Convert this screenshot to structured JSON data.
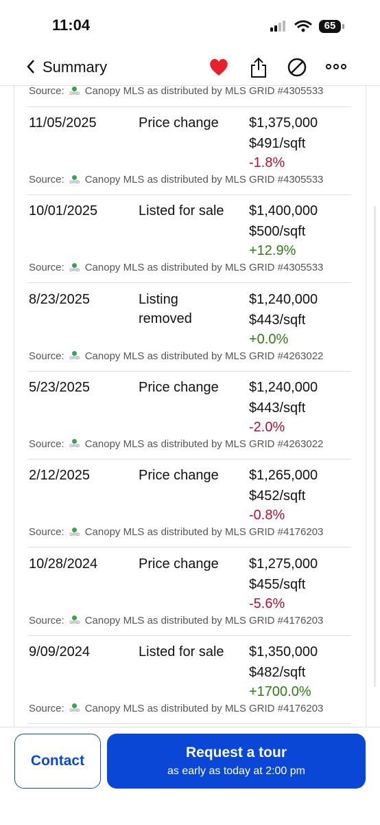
{
  "status_bar": {
    "time": "11:04",
    "battery": "65"
  },
  "nav": {
    "back_label": "Summary"
  },
  "history": {
    "top_source": {
      "label": "Source:",
      "logo": "GRID",
      "text": "Canopy MLS as distributed by MLS GRID #4305533"
    },
    "rows": [
      {
        "date": "11/05/2025",
        "event": "Price change",
        "price": "$1,375,000",
        "per_sqft": "$491/sqft",
        "change": "-1.8%",
        "change_color": "#b0102a",
        "source": {
          "label": "Source:",
          "logo": "GRID",
          "text": "Canopy MLS as distributed by MLS GRID #4305533"
        }
      },
      {
        "date": "10/01/2025",
        "event": "Listed for sale",
        "price": "$1,400,000",
        "per_sqft": "$500/sqft",
        "change": "+12.9%",
        "change_color": "#2e7d12",
        "source": {
          "label": "Source:",
          "logo": "GRID",
          "text": "Canopy MLS as distributed by MLS GRID #4305533"
        }
      },
      {
        "date": "8/23/2025",
        "event": "Listing removed",
        "price": "$1,240,000",
        "per_sqft": "$443/sqft",
        "change": "+0.0%",
        "change_color": "#2e7d12",
        "source": {
          "label": "Source:",
          "logo": "GRID",
          "text": "Canopy MLS as distributed by MLS GRID #4263022"
        }
      },
      {
        "date": "5/23/2025",
        "event": "Price change",
        "price": "$1,240,000",
        "per_sqft": "$443/sqft",
        "change": "-2.0%",
        "change_color": "#b0102a",
        "source": {
          "label": "Source:",
          "logo": "GRID",
          "text": "Canopy MLS as distributed by MLS GRID #4263022"
        }
      },
      {
        "date": "2/12/2025",
        "event": "Price change",
        "price": "$1,265,000",
        "per_sqft": "$452/sqft",
        "change": "-0.8%",
        "change_color": "#b0102a",
        "source": {
          "label": "Source:",
          "logo": "GRID",
          "text": "Canopy MLS as distributed by MLS GRID #4176203"
        }
      },
      {
        "date": "10/28/2024",
        "event": "Price change",
        "price": "$1,275,000",
        "per_sqft": "$455/sqft",
        "change": "-5.6%",
        "change_color": "#b0102a",
        "source": {
          "label": "Source:",
          "logo": "GRID",
          "text": "Canopy MLS as distributed by MLS GRID #4176203"
        }
      },
      {
        "date": "9/09/2024",
        "event": "Listed for sale",
        "price": "$1,350,000",
        "per_sqft": "$482/sqft",
        "change": "+1700.0%",
        "change_color": "#2e7d12",
        "source": {
          "label": "Source:",
          "logo": "GRID",
          "text": "Canopy MLS as distributed by MLS GRID #4176203"
        }
      }
    ]
  },
  "footer": {
    "contact": "Contact",
    "tour_title": "Request a tour",
    "tour_subtitle": "as early as today at 2:00 pm"
  }
}
